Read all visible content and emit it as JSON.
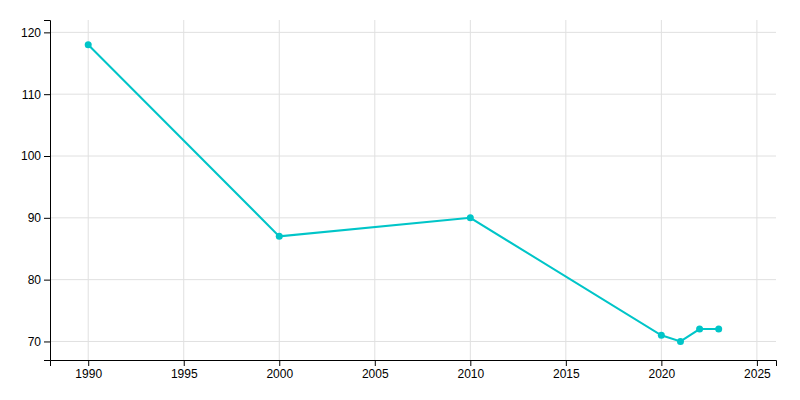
{
  "chart_data": {
    "type": "line",
    "x": [
      1990,
      2000,
      2010,
      2020,
      2021,
      2022,
      2023
    ],
    "values": [
      118,
      87,
      90,
      71,
      70,
      72,
      72
    ],
    "color": "#00C5C8",
    "marker": "circle",
    "xlim": [
      1988,
      2026
    ],
    "ylim": [
      67,
      122
    ],
    "xticks": [
      1990,
      1995,
      2000,
      2005,
      2010,
      2015,
      2020,
      2025
    ],
    "yticks": [
      70,
      80,
      90,
      100,
      110,
      120
    ],
    "grid": true
  }
}
